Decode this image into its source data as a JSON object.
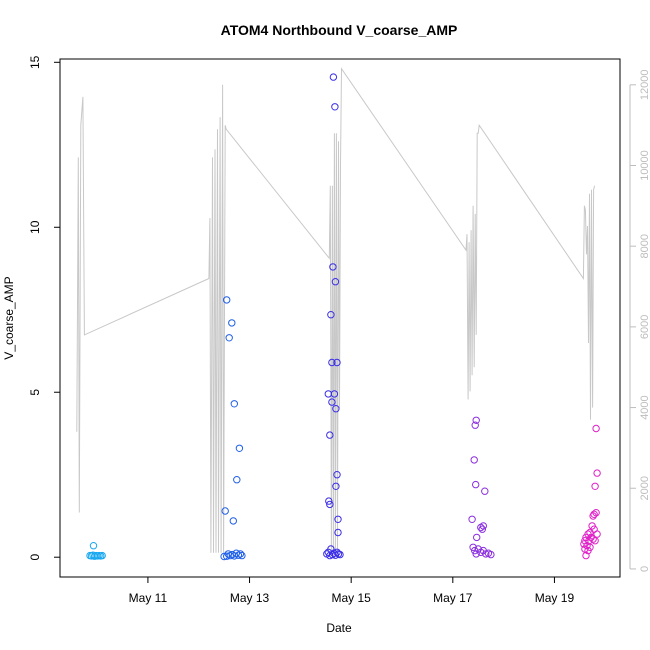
{
  "chart_data": {
    "type": "scatter",
    "title": "ATOM4 Northbound V_coarse_AMP",
    "xlabel": "Date",
    "ylabel": "V_coarse_AMP",
    "x_ticks": [
      {
        "label": "May 11",
        "value": 11.0
      },
      {
        "label": "May 13",
        "value": 13.0
      },
      {
        "label": "May 15",
        "value": 15.0
      },
      {
        "label": "May 17",
        "value": 17.0
      },
      {
        "label": "May 19",
        "value": 19.0
      }
    ],
    "xlim": [
      9.27,
      20.29
    ],
    "ylim": [
      -0.6,
      15.1
    ],
    "y_ticks": [
      0,
      5,
      10,
      15
    ],
    "y2lim": [
      -200,
      12640
    ],
    "y2_ticks": [
      0,
      2000,
      4000,
      6000,
      8000,
      10000,
      12000
    ],
    "grid": false,
    "points": [
      {
        "x": 9.93,
        "y": 0.35,
        "color": "#19a8f0"
      },
      {
        "x": 9.86,
        "y": 0.05,
        "color": "#19a8f0"
      },
      {
        "x": 9.89,
        "y": 0.04,
        "color": "#19a8f0"
      },
      {
        "x": 9.92,
        "y": 0.06,
        "color": "#19a8f0"
      },
      {
        "x": 9.95,
        "y": 0.03,
        "color": "#19a8f0"
      },
      {
        "x": 9.98,
        "y": 0.05,
        "color": "#19a8f0"
      },
      {
        "x": 10.01,
        "y": 0.04,
        "color": "#19a8f0"
      },
      {
        "x": 10.04,
        "y": 0.05,
        "color": "#19a8f0"
      },
      {
        "x": 10.07,
        "y": 0.04,
        "color": "#19a8f0"
      },
      {
        "x": 10.1,
        "y": 0.05,
        "color": "#19a8f0"
      },
      {
        "x": 12.55,
        "y": 7.8,
        "color": "#1f5fe8"
      },
      {
        "x": 12.6,
        "y": 6.65,
        "color": "#1f5fe8"
      },
      {
        "x": 12.65,
        "y": 7.1,
        "color": "#1f5fe8"
      },
      {
        "x": 12.7,
        "y": 4.65,
        "color": "#1f5fe8"
      },
      {
        "x": 12.75,
        "y": 2.35,
        "color": "#1f5fe8"
      },
      {
        "x": 12.8,
        "y": 3.3,
        "color": "#1f5fe8"
      },
      {
        "x": 12.52,
        "y": 1.4,
        "color": "#1f5fe8"
      },
      {
        "x": 12.68,
        "y": 1.1,
        "color": "#1f5fe8"
      },
      {
        "x": 12.5,
        "y": 0.02,
        "color": "#1f5fe8"
      },
      {
        "x": 12.55,
        "y": 0.03,
        "color": "#1f5fe8"
      },
      {
        "x": 12.58,
        "y": 0.1,
        "color": "#1f5fe8"
      },
      {
        "x": 12.62,
        "y": 0.05,
        "color": "#1f5fe8"
      },
      {
        "x": 12.66,
        "y": 0.08,
        "color": "#1f5fe8"
      },
      {
        "x": 12.7,
        "y": 0.04,
        "color": "#1f5fe8"
      },
      {
        "x": 12.74,
        "y": 0.12,
        "color": "#1f5fe8"
      },
      {
        "x": 12.78,
        "y": 0.06,
        "color": "#1f5fe8"
      },
      {
        "x": 12.82,
        "y": 0.1,
        "color": "#1f5fe8"
      },
      {
        "x": 12.85,
        "y": 0.05,
        "color": "#1f5fe8"
      },
      {
        "x": 14.65,
        "y": 14.55,
        "color": "#3a2ee8"
      },
      {
        "x": 14.68,
        "y": 13.65,
        "color": "#3a2ee8"
      },
      {
        "x": 14.64,
        "y": 8.8,
        "color": "#3a2ee8"
      },
      {
        "x": 14.69,
        "y": 8.35,
        "color": "#3a2ee8"
      },
      {
        "x": 14.6,
        "y": 7.35,
        "color": "#3a2ee8"
      },
      {
        "x": 14.62,
        "y": 5.9,
        "color": "#3a2ee8"
      },
      {
        "x": 14.72,
        "y": 5.9,
        "color": "#3a2ee8"
      },
      {
        "x": 14.55,
        "y": 4.95,
        "color": "#3a2ee8"
      },
      {
        "x": 14.67,
        "y": 4.95,
        "color": "#3a2ee8"
      },
      {
        "x": 14.62,
        "y": 4.7,
        "color": "#3a2ee8"
      },
      {
        "x": 14.7,
        "y": 4.5,
        "color": "#3a2ee8"
      },
      {
        "x": 14.58,
        "y": 3.7,
        "color": "#3a2ee8"
      },
      {
        "x": 14.72,
        "y": 2.5,
        "color": "#3a2ee8"
      },
      {
        "x": 14.7,
        "y": 2.15,
        "color": "#3a2ee8"
      },
      {
        "x": 14.56,
        "y": 1.7,
        "color": "#3a2ee8"
      },
      {
        "x": 14.58,
        "y": 1.6,
        "color": "#3a2ee8"
      },
      {
        "x": 14.74,
        "y": 1.15,
        "color": "#3a2ee8"
      },
      {
        "x": 14.74,
        "y": 0.75,
        "color": "#3a2ee8"
      },
      {
        "x": 14.52,
        "y": 0.1,
        "color": "#3a2ee8"
      },
      {
        "x": 14.55,
        "y": 0.15,
        "color": "#3a2ee8"
      },
      {
        "x": 14.58,
        "y": 0.05,
        "color": "#3a2ee8"
      },
      {
        "x": 14.6,
        "y": 0.25,
        "color": "#3a2ee8"
      },
      {
        "x": 14.63,
        "y": 0.08,
        "color": "#3a2ee8"
      },
      {
        "x": 14.66,
        "y": 0.12,
        "color": "#3a2ee8"
      },
      {
        "x": 14.69,
        "y": 0.06,
        "color": "#3a2ee8"
      },
      {
        "x": 14.72,
        "y": 0.15,
        "color": "#3a2ee8"
      },
      {
        "x": 14.75,
        "y": 0.1,
        "color": "#3a2ee8"
      },
      {
        "x": 14.78,
        "y": 0.08,
        "color": "#3a2ee8"
      },
      {
        "x": 17.44,
        "y": 4.0,
        "color": "#8b2fe0"
      },
      {
        "x": 17.46,
        "y": 4.15,
        "color": "#8b2fe0"
      },
      {
        "x": 17.42,
        "y": 2.95,
        "color": "#8b2fe0"
      },
      {
        "x": 17.45,
        "y": 2.2,
        "color": "#8b2fe0"
      },
      {
        "x": 17.63,
        "y": 2.0,
        "color": "#8b2fe0"
      },
      {
        "x": 17.38,
        "y": 1.15,
        "color": "#8b2fe0"
      },
      {
        "x": 17.6,
        "y": 0.95,
        "color": "#8b2fe0"
      },
      {
        "x": 17.55,
        "y": 0.9,
        "color": "#8b2fe0"
      },
      {
        "x": 17.58,
        "y": 0.85,
        "color": "#8b2fe0"
      },
      {
        "x": 17.47,
        "y": 0.6,
        "color": "#8b2fe0"
      },
      {
        "x": 17.4,
        "y": 0.3,
        "color": "#8b2fe0"
      },
      {
        "x": 17.43,
        "y": 0.2,
        "color": "#8b2fe0"
      },
      {
        "x": 17.46,
        "y": 0.1,
        "color": "#8b2fe0"
      },
      {
        "x": 17.5,
        "y": 0.25,
        "color": "#8b2fe0"
      },
      {
        "x": 17.55,
        "y": 0.15,
        "color": "#8b2fe0"
      },
      {
        "x": 17.6,
        "y": 0.2,
        "color": "#8b2fe0"
      },
      {
        "x": 17.65,
        "y": 0.1,
        "color": "#8b2fe0"
      },
      {
        "x": 17.7,
        "y": 0.12,
        "color": "#8b2fe0"
      },
      {
        "x": 17.75,
        "y": 0.08,
        "color": "#8b2fe0"
      },
      {
        "x": 19.82,
        "y": 3.9,
        "color": "#e020c8"
      },
      {
        "x": 19.84,
        "y": 2.55,
        "color": "#e020c8"
      },
      {
        "x": 19.8,
        "y": 2.15,
        "color": "#e020c8"
      },
      {
        "x": 19.78,
        "y": 1.3,
        "color": "#e020c8"
      },
      {
        "x": 19.82,
        "y": 1.35,
        "color": "#e020c8"
      },
      {
        "x": 19.76,
        "y": 1.25,
        "color": "#e020c8"
      },
      {
        "x": 19.74,
        "y": 0.95,
        "color": "#e020c8"
      },
      {
        "x": 19.78,
        "y": 0.85,
        "color": "#e020c8"
      },
      {
        "x": 19.7,
        "y": 0.75,
        "color": "#e020c8"
      },
      {
        "x": 19.84,
        "y": 0.7,
        "color": "#e020c8"
      },
      {
        "x": 19.66,
        "y": 0.7,
        "color": "#e020c8"
      },
      {
        "x": 19.62,
        "y": 0.6,
        "color": "#e020c8"
      },
      {
        "x": 19.72,
        "y": 0.6,
        "color": "#e020c8"
      },
      {
        "x": 19.76,
        "y": 0.55,
        "color": "#e020c8"
      },
      {
        "x": 19.6,
        "y": 0.5,
        "color": "#e020c8"
      },
      {
        "x": 19.68,
        "y": 0.5,
        "color": "#e020c8"
      },
      {
        "x": 19.8,
        "y": 0.5,
        "color": "#e020c8"
      },
      {
        "x": 19.58,
        "y": 0.4,
        "color": "#e020c8"
      },
      {
        "x": 19.64,
        "y": 0.35,
        "color": "#e020c8"
      },
      {
        "x": 19.7,
        "y": 0.3,
        "color": "#e020c8"
      },
      {
        "x": 19.6,
        "y": 0.25,
        "color": "#e020c8"
      },
      {
        "x": 19.66,
        "y": 0.2,
        "color": "#e020c8"
      },
      {
        "x": 19.62,
        "y": 0.05,
        "color": "#e020c8"
      }
    ],
    "secondary_line": {
      "color": "#c8c8c8",
      "points": [
        [
          9.6,
          3400
        ],
        [
          9.63,
          10200
        ],
        [
          9.65,
          1400
        ],
        [
          9.68,
          11000
        ],
        [
          9.72,
          11700
        ],
        [
          9.75,
          5800
        ],
        [
          12.2,
          7200
        ],
        [
          12.22,
          8700
        ],
        [
          12.24,
          400
        ],
        [
          12.27,
          10200
        ],
        [
          12.29,
          400
        ],
        [
          12.32,
          10400
        ],
        [
          12.34,
          400
        ],
        [
          12.37,
          10900
        ],
        [
          12.39,
          400
        ],
        [
          12.42,
          11200
        ],
        [
          12.44,
          400
        ],
        [
          12.47,
          12000
        ],
        [
          12.49,
          400
        ],
        [
          12.52,
          11000
        ],
        [
          12.54,
          10900
        ],
        [
          14.57,
          7700
        ],
        [
          14.59,
          9500
        ],
        [
          14.61,
          400
        ],
        [
          14.63,
          9500
        ],
        [
          14.65,
          400
        ],
        [
          14.67,
          10800
        ],
        [
          14.69,
          400
        ],
        [
          14.71,
          10800
        ],
        [
          14.73,
          400
        ],
        [
          14.75,
          10600
        ],
        [
          14.77,
          4000
        ],
        [
          14.79,
          10000
        ],
        [
          14.81,
          12400
        ],
        [
          17.26,
          7900
        ],
        [
          17.28,
          8300
        ],
        [
          17.3,
          4200
        ],
        [
          17.32,
          8100
        ],
        [
          17.34,
          4400
        ],
        [
          17.36,
          8400
        ],
        [
          17.38,
          4800
        ],
        [
          17.4,
          9000
        ],
        [
          17.42,
          5000
        ],
        [
          17.44,
          8800
        ],
        [
          17.46,
          5800
        ],
        [
          17.48,
          10800
        ],
        [
          17.5,
          10800
        ],
        [
          17.52,
          11000
        ],
        [
          19.57,
          7200
        ],
        [
          19.59,
          9000
        ],
        [
          19.61,
          8900
        ],
        [
          19.63,
          7800
        ],
        [
          19.65,
          8500
        ],
        [
          19.67,
          5600
        ],
        [
          19.69,
          9300
        ],
        [
          19.71,
          3700
        ],
        [
          19.73,
          9400
        ],
        [
          19.75,
          4000
        ],
        [
          19.77,
          9400
        ],
        [
          19.79,
          9500
        ]
      ]
    }
  }
}
